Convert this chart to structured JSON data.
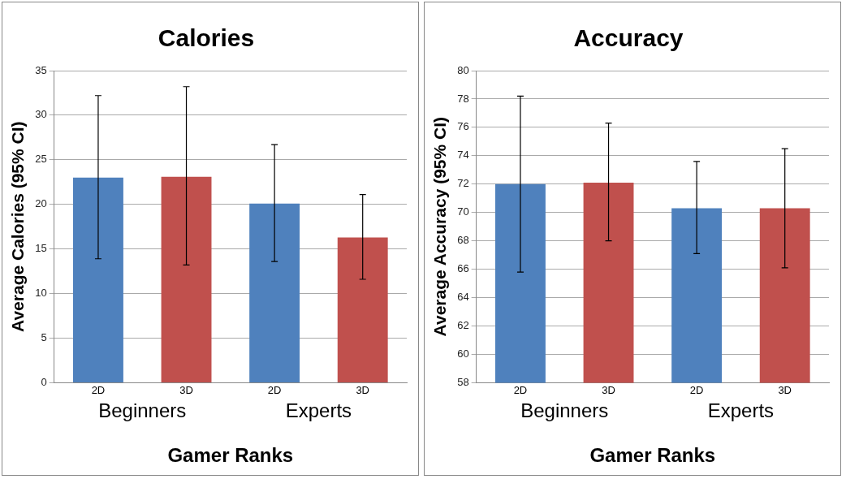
{
  "chart_data": [
    {
      "type": "bar",
      "title": "Calories",
      "xlabel": "Gamer Ranks",
      "ylabel": "Average Calories (95% CI)",
      "categories": [
        "Beginners",
        "Experts"
      ],
      "series": [
        {
          "name": "2D",
          "color": "#4f81bd",
          "values": [
            23.0,
            20.1
          ],
          "errors": [
            [
              13.9,
              32.2
            ],
            [
              13.6,
              26.7
            ]
          ]
        },
        {
          "name": "3D",
          "color": "#c0504d",
          "values": [
            23.1,
            16.3
          ],
          "errors": [
            [
              13.2,
              33.2
            ],
            [
              11.6,
              21.1
            ]
          ]
        }
      ],
      "ylim": [
        0,
        35
      ],
      "yticks": [
        0,
        5,
        10,
        15,
        20,
        25,
        30,
        35
      ],
      "grid": "y",
      "legend": false
    },
    {
      "type": "bar",
      "title": "Accuracy",
      "xlabel": "Gamer Ranks",
      "ylabel": "Average Accuracy (95% CI)",
      "categories": [
        "Beginners",
        "Experts"
      ],
      "series": [
        {
          "name": "2D",
          "color": "#4f81bd",
          "values": [
            72.0,
            70.3
          ],
          "errors": [
            [
              65.8,
              78.2
            ],
            [
              67.1,
              73.6
            ]
          ]
        },
        {
          "name": "3D",
          "color": "#c0504d",
          "values": [
            72.1,
            70.3
          ],
          "errors": [
            [
              68.0,
              76.3
            ],
            [
              66.1,
              74.5
            ]
          ]
        }
      ],
      "ylim": [
        58,
        80
      ],
      "yticks": [
        58,
        60,
        62,
        64,
        66,
        68,
        70,
        72,
        74,
        76,
        78,
        80
      ],
      "grid": "y",
      "legend": false
    }
  ]
}
